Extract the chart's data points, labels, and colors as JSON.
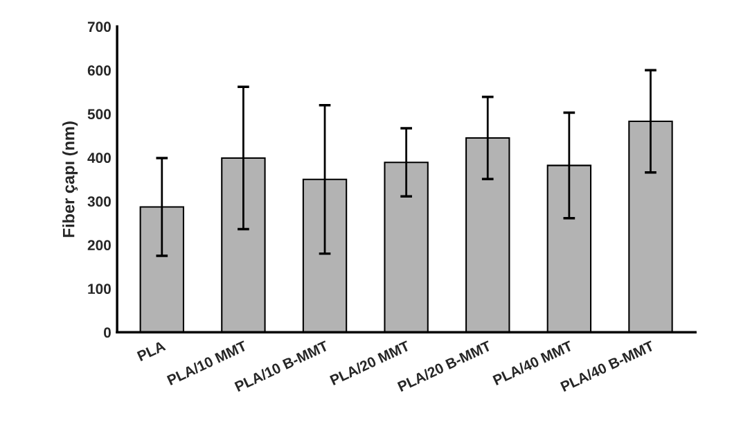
{
  "chart_data": {
    "type": "bar",
    "ylabel": "Fiber çapı (nm)",
    "categories": [
      "PLA",
      "PLA/10 MMT",
      "PLA/10 B-MMT",
      "PLA/20 MMT",
      "PLA/20 B-MMT",
      "PLA/40 MMT",
      "PLA/40 B-MMT"
    ],
    "values": [
      287,
      399,
      350,
      389,
      445,
      382,
      483
    ],
    "errors": [
      112,
      163,
      170,
      78,
      94,
      121,
      117
    ],
    "color": "#b3b3b3",
    "ylim": [
      0,
      700
    ],
    "yticks": [
      0,
      100,
      200,
      300,
      400,
      500,
      600,
      700
    ],
    "grid": false
  }
}
